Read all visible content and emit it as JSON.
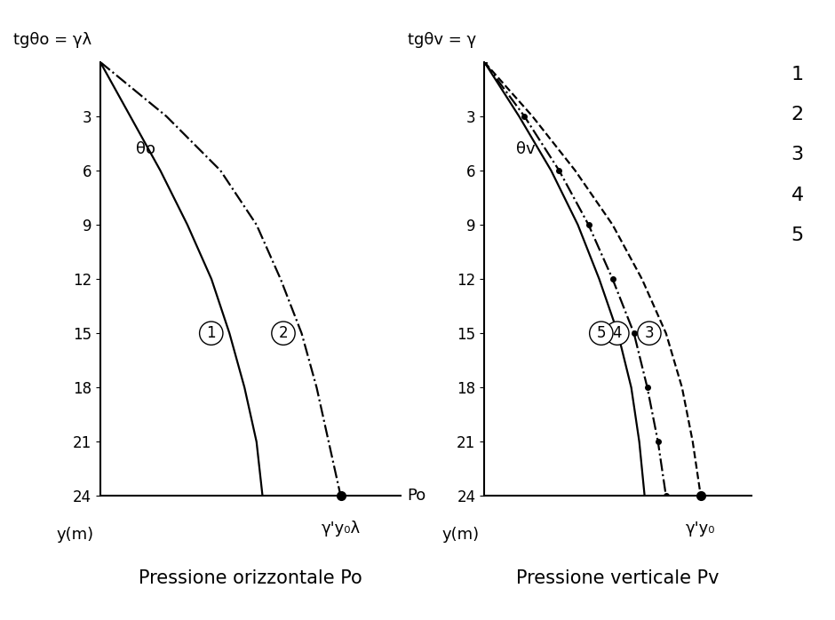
{
  "chart_data": [
    {
      "type": "line",
      "title": "Pressione orizzontale Po",
      "y_label": "y(m)",
      "x_label": "Po",
      "annotations": [
        "tgθo = γλ",
        "θo"
      ],
      "y": [
        0,
        3,
        6,
        9,
        12,
        15,
        18,
        21,
        24
      ],
      "ylim": [
        24,
        0
      ],
      "yticks": [
        3,
        6,
        9,
        12,
        15,
        18,
        21,
        24
      ],
      "xlim": [
        0,
        10
      ],
      "xticks": [],
      "tick_labels": "y",
      "series": [
        {
          "name": "1",
          "color": "#000000",
          "line_style": "solid",
          "marker": "none",
          "values": [
            0,
            1.0,
            2.0,
            2.9,
            3.7,
            4.3,
            4.8,
            5.2,
            5.4
          ]
        },
        {
          "name": "2",
          "color": "#000000",
          "line_style": "dashdot",
          "marker": "none",
          "end_label": "γ'y₀λ",
          "values": [
            0,
            2.2,
            4.0,
            5.2,
            6.0,
            6.7,
            7.2,
            7.6,
            8.0
          ]
        }
      ]
    },
    {
      "type": "line",
      "title": "Pressione verticale Pv",
      "y_label": "y(m)",
      "annotations": [
        "tgθv = γ",
        "θv"
      ],
      "side_labels": [
        "1",
        "2",
        "3",
        "4",
        "5"
      ],
      "y": [
        0,
        3,
        6,
        9,
        12,
        15,
        18,
        21,
        24
      ],
      "ylim": [
        24,
        0
      ],
      "yticks": [
        3,
        6,
        9,
        12,
        15,
        18,
        21,
        24
      ],
      "xlim": [
        0,
        10
      ],
      "xticks": [],
      "tick_labels": "y",
      "series": [
        {
          "name": "3",
          "color": "#000000",
          "line_style": "dashed",
          "marker": "none",
          "end_label": "γ'y₀",
          "values": [
            0,
            1.8,
            3.4,
            4.8,
            5.9,
            6.8,
            7.4,
            7.8,
            8.1
          ]
        },
        {
          "name": "4",
          "color": "#000000",
          "line_style": "dashdot",
          "marker": "dot",
          "values": [
            0,
            1.5,
            2.8,
            3.9,
            4.8,
            5.6,
            6.1,
            6.5,
            6.8
          ]
        },
        {
          "name": "5",
          "color": "#000000",
          "line_style": "solid",
          "marker": "none",
          "values": [
            0,
            1.3,
            2.5,
            3.5,
            4.3,
            5.0,
            5.5,
            5.8,
            6.0
          ]
        }
      ]
    }
  ]
}
